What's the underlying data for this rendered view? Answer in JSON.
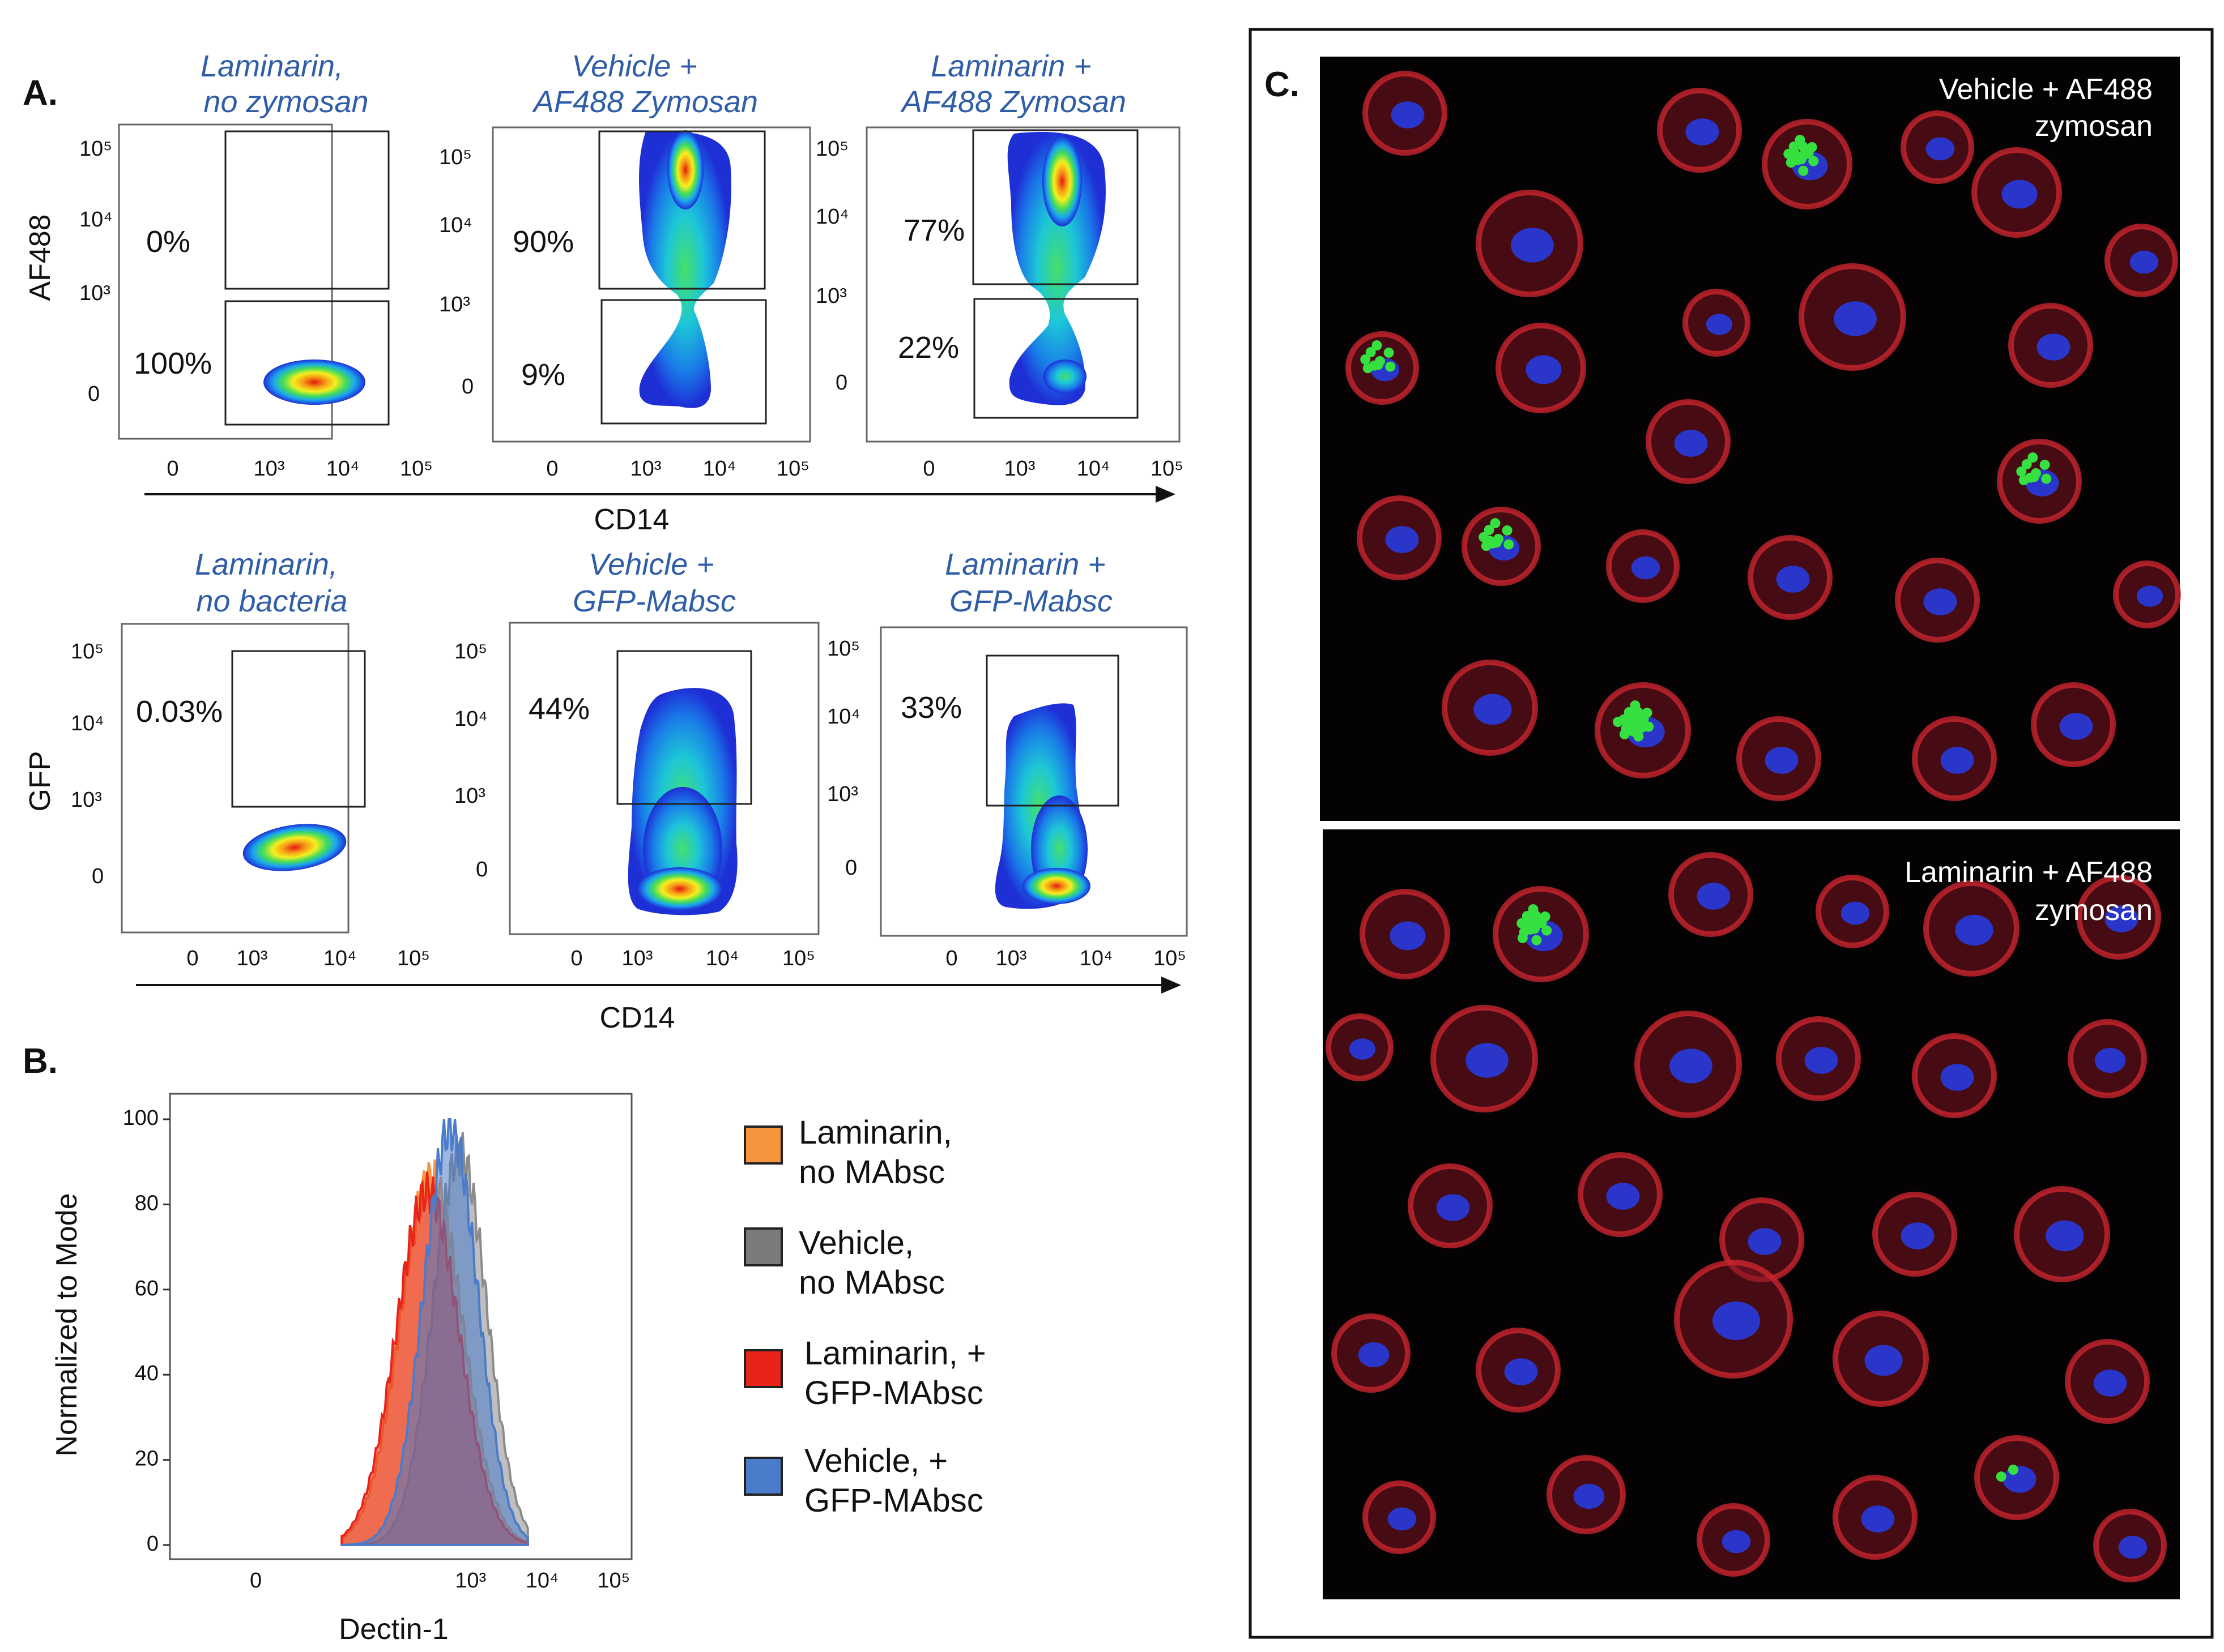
{
  "panels": {
    "a_letter": "A.",
    "b_letter": "B.",
    "c_letter": "C."
  },
  "flow_row1": {
    "y_axis_label": "AF488",
    "x_axis_label": "CD14",
    "plots": [
      {
        "title_line1": "Laminarin,",
        "title_line2": "no zymosan",
        "upper_gate_pct": "0%",
        "lower_gate_pct": "100%"
      },
      {
        "title_line1": "Vehicle +",
        "title_line2": "AF488 Zymosan",
        "upper_gate_pct": "90%",
        "lower_gate_pct": "9%"
      },
      {
        "title_line1": "Laminarin +",
        "title_line2": "AF488 Zymosan",
        "upper_gate_pct": "77%",
        "lower_gate_pct": "22%"
      }
    ]
  },
  "flow_row2": {
    "y_axis_label": "GFP",
    "x_axis_label": "CD14",
    "plots": [
      {
        "title_line1": "Laminarin,",
        "title_line2": "no bacteria",
        "gate_pct": "0.03%"
      },
      {
        "title_line1": "Vehicle +",
        "title_line2": "GFP-Mabsc",
        "gate_pct": "44%"
      },
      {
        "title_line1": "Laminarin +",
        "title_line2": "GFP-Mabsc",
        "gate_pct": "33%"
      }
    ]
  },
  "log_ticks": {
    "zero": "0",
    "t3": "10³",
    "t4": "10⁴",
    "t5": "10⁵"
  },
  "chart_data": [
    {
      "type": "scatter",
      "description_kind": "flow cytometry density plots, row 1",
      "xlabel": "CD14",
      "ylabel": "AF488",
      "axis_ticks": [
        "0",
        "10³",
        "10⁴",
        "10⁵"
      ],
      "panels": [
        {
          "title": "Laminarin, no zymosan",
          "upper_gate_percent": 0,
          "lower_gate_percent": 100
        },
        {
          "title": "Vehicle + AF488 Zymosan",
          "upper_gate_percent": 90,
          "lower_gate_percent": 9
        },
        {
          "title": "Laminarin + AF488 Zymosan",
          "upper_gate_percent": 77,
          "lower_gate_percent": 22
        }
      ]
    },
    {
      "type": "scatter",
      "description_kind": "flow cytometry density plots, row 2",
      "xlabel": "CD14",
      "ylabel": "GFP",
      "axis_ticks": [
        "0",
        "10³",
        "10⁴",
        "10⁵"
      ],
      "panels": [
        {
          "title": "Laminarin, no bacteria",
          "gate_percent": 0.03
        },
        {
          "title": "Vehicle + GFP-Mabsc",
          "gate_percent": 44
        },
        {
          "title": "Laminarin + GFP-Mabsc",
          "gate_percent": 33
        }
      ]
    },
    {
      "type": "area",
      "title": "",
      "xlabel": "Dectin-1",
      "ylabel": "Normalized to Mode",
      "ylim": [
        0,
        100
      ],
      "y_ticks": [
        "0",
        "20",
        "40",
        "60",
        "80",
        "100"
      ],
      "x_ticks": [
        "0",
        "10³",
        "10⁴",
        "10⁵"
      ],
      "x_log_positions": [
        0,
        3,
        4,
        5
      ],
      "series": [
        {
          "name": "Laminarin, no MAbsc",
          "color": "#f7953f",
          "peak_x_log": 2.45,
          "peak_y": 86
        },
        {
          "name": "Vehicle, no MAbsc",
          "color": "#8b8b8b",
          "peak_x_log": 2.85,
          "peak_y": 92
        },
        {
          "name": "Laminarin, + GFP-MAbsc",
          "color": "#e8231a",
          "peak_x_log": 2.4,
          "peak_y": 83
        },
        {
          "name": "Vehicle, + GFP-MAbsc",
          "color": "#4a7cc9",
          "peak_x_log": 2.72,
          "peak_y": 98
        }
      ]
    }
  ],
  "legend": {
    "items": [
      {
        "line1": "Laminarin,",
        "line2": "no MAbsc",
        "color": "#f7953f"
      },
      {
        "line1": "Vehicle,",
        "line2": "no MAbsc",
        "color": "#7b7b7b"
      },
      {
        "line1": "Laminarin, +",
        "line2": "GFP-MAbsc",
        "color": "#e8231a"
      },
      {
        "line1": "Vehicle, +",
        "line2": "GFP-MAbsc",
        "color": "#4a7cc9"
      }
    ]
  },
  "microscopy": {
    "top_label_line1": "Vehicle + AF488",
    "top_label_line2": "zymosan",
    "bottom_label_line1": "Laminarin + AF488",
    "bottom_label_line2": "zymosan"
  }
}
